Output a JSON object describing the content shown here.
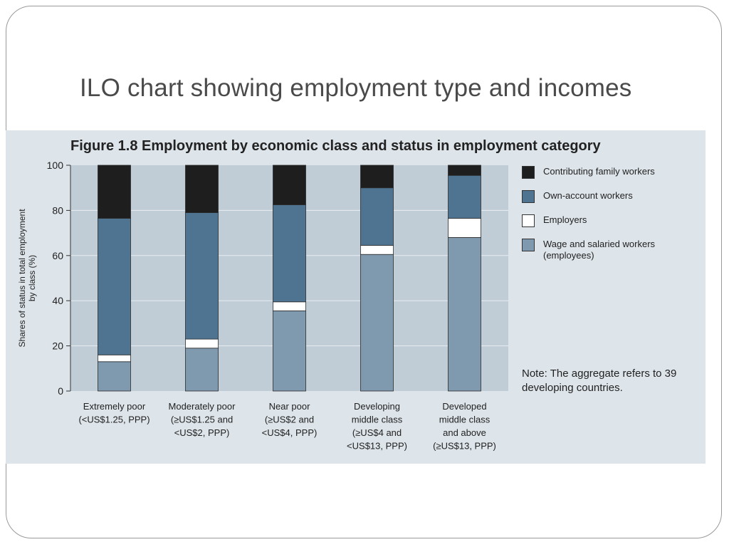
{
  "slide": {
    "title": "ILO chart showing employment type and incomes"
  },
  "figure": {
    "title": "Figure 1.8  Employment by economic class and status in employment category",
    "note": "Note: The aggregate refers to 39 developing countries."
  },
  "colors": {
    "panel_bg": "#dde4ea",
    "plot_bg": "#c0ccd6",
    "contributing": "#1e1e1e",
    "own_account": "#4e7491",
    "employers": "#ffffff",
    "wage": "#7f9aae",
    "gridline": "#e9eef2"
  },
  "chart_data": {
    "type": "bar",
    "stacked": true,
    "title": "Figure 1.8  Employment by economic class and status in employment category",
    "xlabel": "",
    "ylabel": "Shares of status in total employment by class (%)",
    "ylim": [
      0,
      100
    ],
    "yticks": [
      "0",
      "20",
      "40",
      "60",
      "80",
      "100"
    ],
    "categories": [
      [
        "Extremely poor",
        "(<US$1.25, PPP)"
      ],
      [
        "Moderately poor",
        "(≥US$1.25 and",
        "<US$2, PPP)"
      ],
      [
        "Near poor",
        "(≥US$2 and",
        "<US$4, PPP)"
      ],
      [
        "Developing",
        "middle class",
        "(≥US$4 and",
        "<US$13, PPP)"
      ],
      [
        "Developed",
        "middle class",
        "and above",
        "(≥US$13, PPP)"
      ]
    ],
    "series": [
      {
        "name": "Wage and salaried workers (employees)",
        "values": [
          13,
          19,
          35.5,
          60.5,
          68
        ]
      },
      {
        "name": "Employers",
        "values": [
          3,
          4,
          4,
          4,
          8.5
        ]
      },
      {
        "name": "Own-account workers",
        "values": [
          60.5,
          56,
          43,
          25.5,
          19
        ]
      },
      {
        "name": "Contributing family workers",
        "values": [
          23.5,
          21,
          17.5,
          10,
          4.5
        ]
      }
    ],
    "legend": [
      {
        "label": "Contributing family workers",
        "color": "#1e1e1e"
      },
      {
        "label": "Own-account workers",
        "color": "#4e7491"
      },
      {
        "label": "Employers",
        "color": "#ffffff"
      },
      {
        "label": "Wage and salaried workers (employees)",
        "color": "#7f9aae"
      }
    ],
    "legend_position": "right"
  }
}
